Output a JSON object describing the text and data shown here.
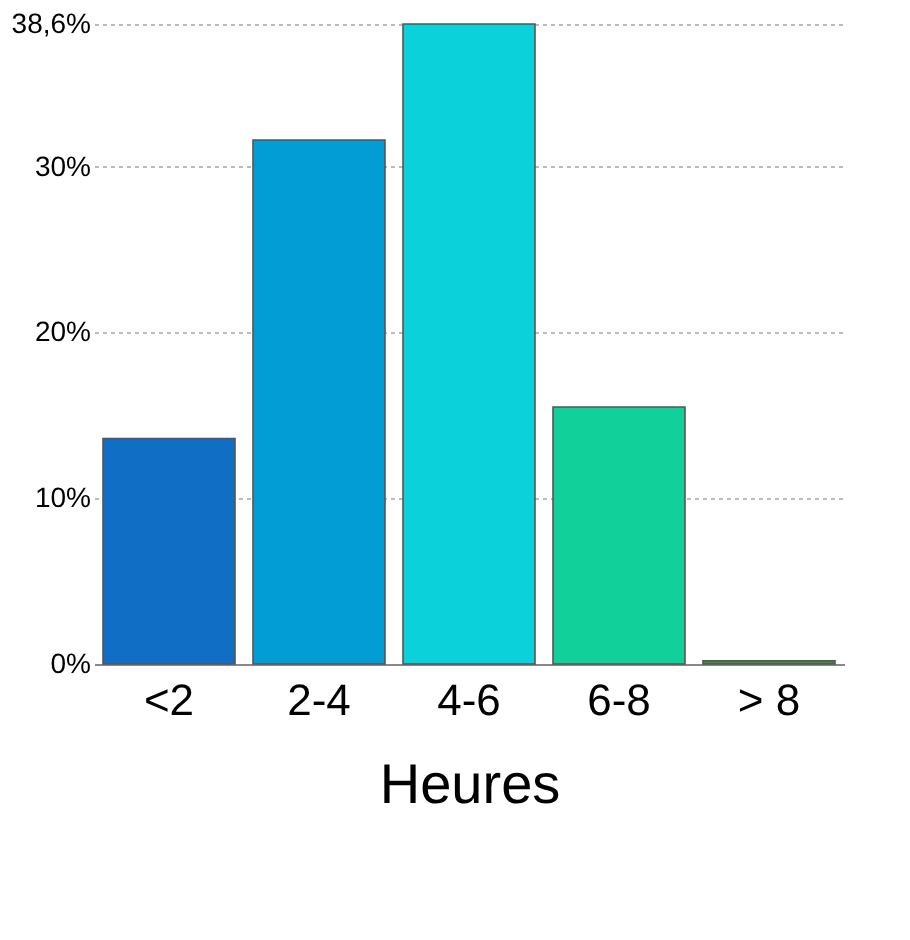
{
  "chart_data": {
    "type": "bar",
    "xlabel": "Heures",
    "categories": [
      "<2",
      "2-4",
      "4-6",
      "6-8",
      "> 8"
    ],
    "values": [
      13.6,
      31.6,
      38.6,
      15.5,
      0.2
    ],
    "colors": [
      "#106ec4",
      "#039dd6",
      "#0bd1db",
      "#12d09a",
      "#3c8f3c"
    ],
    "ylim": [
      0,
      38.6
    ],
    "yticks": [
      {
        "value": 0,
        "label": "0%"
      },
      {
        "value": 10,
        "label": "10%"
      },
      {
        "value": 20,
        "label": "20%"
      },
      {
        "value": 30,
        "label": "30%"
      },
      {
        "value": 38.6,
        "label": "38,6%"
      }
    ],
    "grid": "y"
  }
}
